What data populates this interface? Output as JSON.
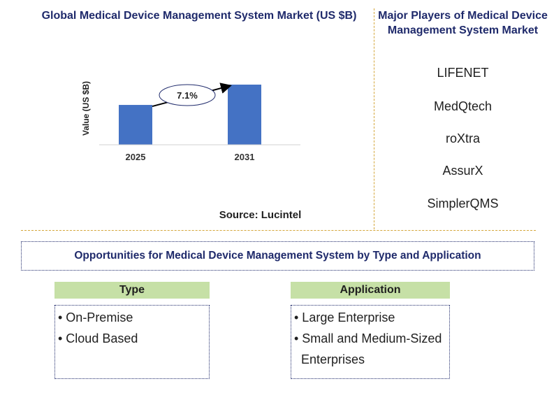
{
  "chart_title": "Global Medical Device Management System Market (US $B)",
  "source": "Source: Lucintel",
  "chart_data": {
    "type": "bar",
    "categories": [
      "2025",
      "2031"
    ],
    "values": [
      1.0,
      1.51
    ],
    "ylabel": "Value (US $B)",
    "xlabel": "",
    "cagr_label": "7.1%",
    "bar_color": "#4472c4"
  },
  "players": {
    "title": "Major Players of Medical Device Management System Market",
    "items": [
      "LIFENET",
      "MedQtech",
      "roXtra",
      "AssurX",
      "SimplerQMS"
    ]
  },
  "opportunities": {
    "title": "Opportunities for Medical Device Management System by Type and Application",
    "type": {
      "header": "Type",
      "items": [
        "• On-Premise",
        "• Cloud Based"
      ]
    },
    "application": {
      "header": "Application",
      "items": [
        "• Large Enterprise",
        "• Small and Medium-Sized",
        "Enterprises"
      ]
    }
  }
}
